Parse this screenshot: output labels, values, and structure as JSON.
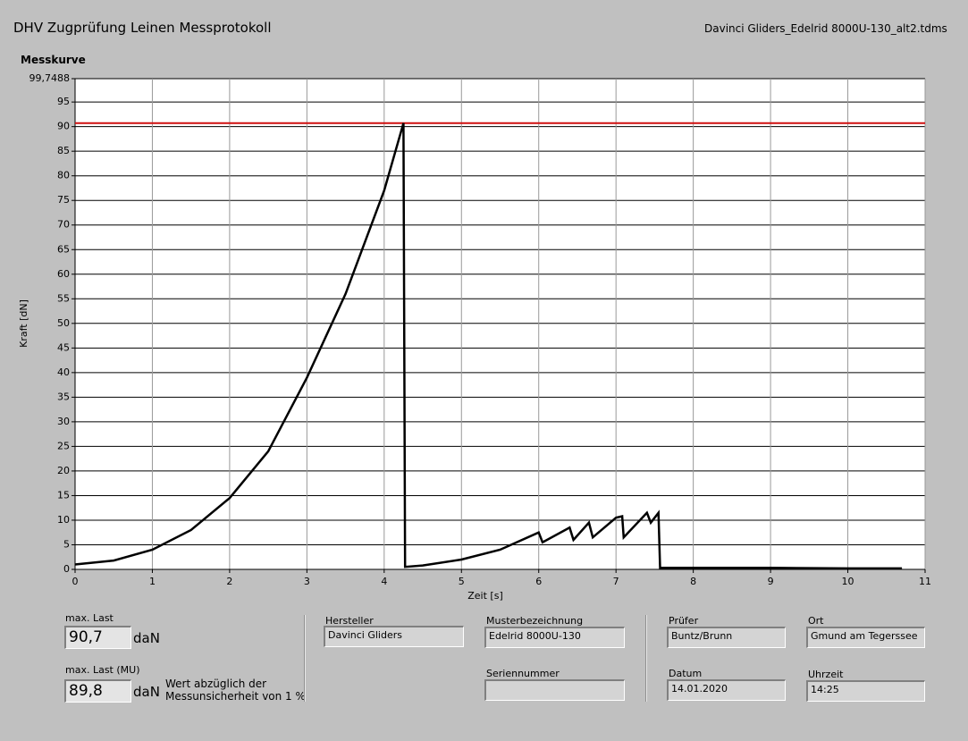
{
  "header": {
    "title": "DHV Zugprüfung Leinen Messprotokoll",
    "file": "Davinci Gliders_Edelrid 8000U-130_alt2.tdms"
  },
  "chart_data": {
    "type": "line",
    "title": "Messkurve",
    "x_label": "Zeit [s]",
    "y_label": "Kraft [dN]",
    "xlim": [
      0,
      11
    ],
    "xticks": [
      0,
      1,
      2,
      3,
      4,
      5,
      6,
      7,
      8,
      9,
      10,
      11
    ],
    "ylim": [
      0,
      99.7488
    ],
    "yticks": [
      0,
      5,
      10,
      15,
      20,
      25,
      30,
      35,
      40,
      45,
      50,
      55,
      60,
      65,
      70,
      75,
      80,
      85,
      90,
      95,
      {
        "value": 99.7488,
        "label": "99,7488"
      }
    ],
    "grid": true,
    "series": [
      {
        "color": "#000000",
        "x": [
          0,
          0.5,
          1,
          1.5,
          2,
          2.5,
          3,
          3.5,
          4,
          4.25,
          4.27,
          4.5,
          5,
          5.5,
          6,
          6.05,
          6.4,
          6.45,
          6.65,
          6.7,
          7,
          7.08,
          7.1,
          7.4,
          7.45,
          7.55,
          7.57,
          8,
          9,
          10,
          10.7
        ],
        "values": [
          1,
          1.8,
          4,
          8,
          14.5,
          24,
          39,
          56,
          77,
          90.7,
          0.5,
          0.8,
          2,
          4,
          7.5,
          5.5,
          8.5,
          6,
          9.5,
          6.5,
          10.5,
          10.8,
          6.5,
          11.5,
          9.5,
          11.5,
          0.3,
          0.3,
          0.3,
          0.2,
          0.2
        ]
      }
    ],
    "reference_line": {
      "value": 90.7,
      "color": "#d01010"
    }
  },
  "fields": {
    "max_load": {
      "label": "max. Last",
      "value": "90,7",
      "unit": "daN"
    },
    "max_load_mu": {
      "label": "max. Last (MU)",
      "value": "89,8",
      "unit": "daN",
      "note": "Wert abzüglich der Messunsicherheit von 1 %"
    },
    "manufacturer": {
      "label": "Hersteller",
      "value": "Davinci Gliders"
    },
    "model": {
      "label": "Musterbezeichnung",
      "value": "Edelrid 8000U-130"
    },
    "serial": {
      "label": "Seriennummer"
    },
    "tester": {
      "label": "Prüfer",
      "value": "Buntz/Brunn"
    },
    "date": {
      "label": "Datum",
      "value": "14.01.2020"
    },
    "place": {
      "label": "Ort",
      "value": "Gmund am Tegerssee"
    },
    "time": {
      "label": "Uhrzeit",
      "value": "14:25"
    }
  }
}
